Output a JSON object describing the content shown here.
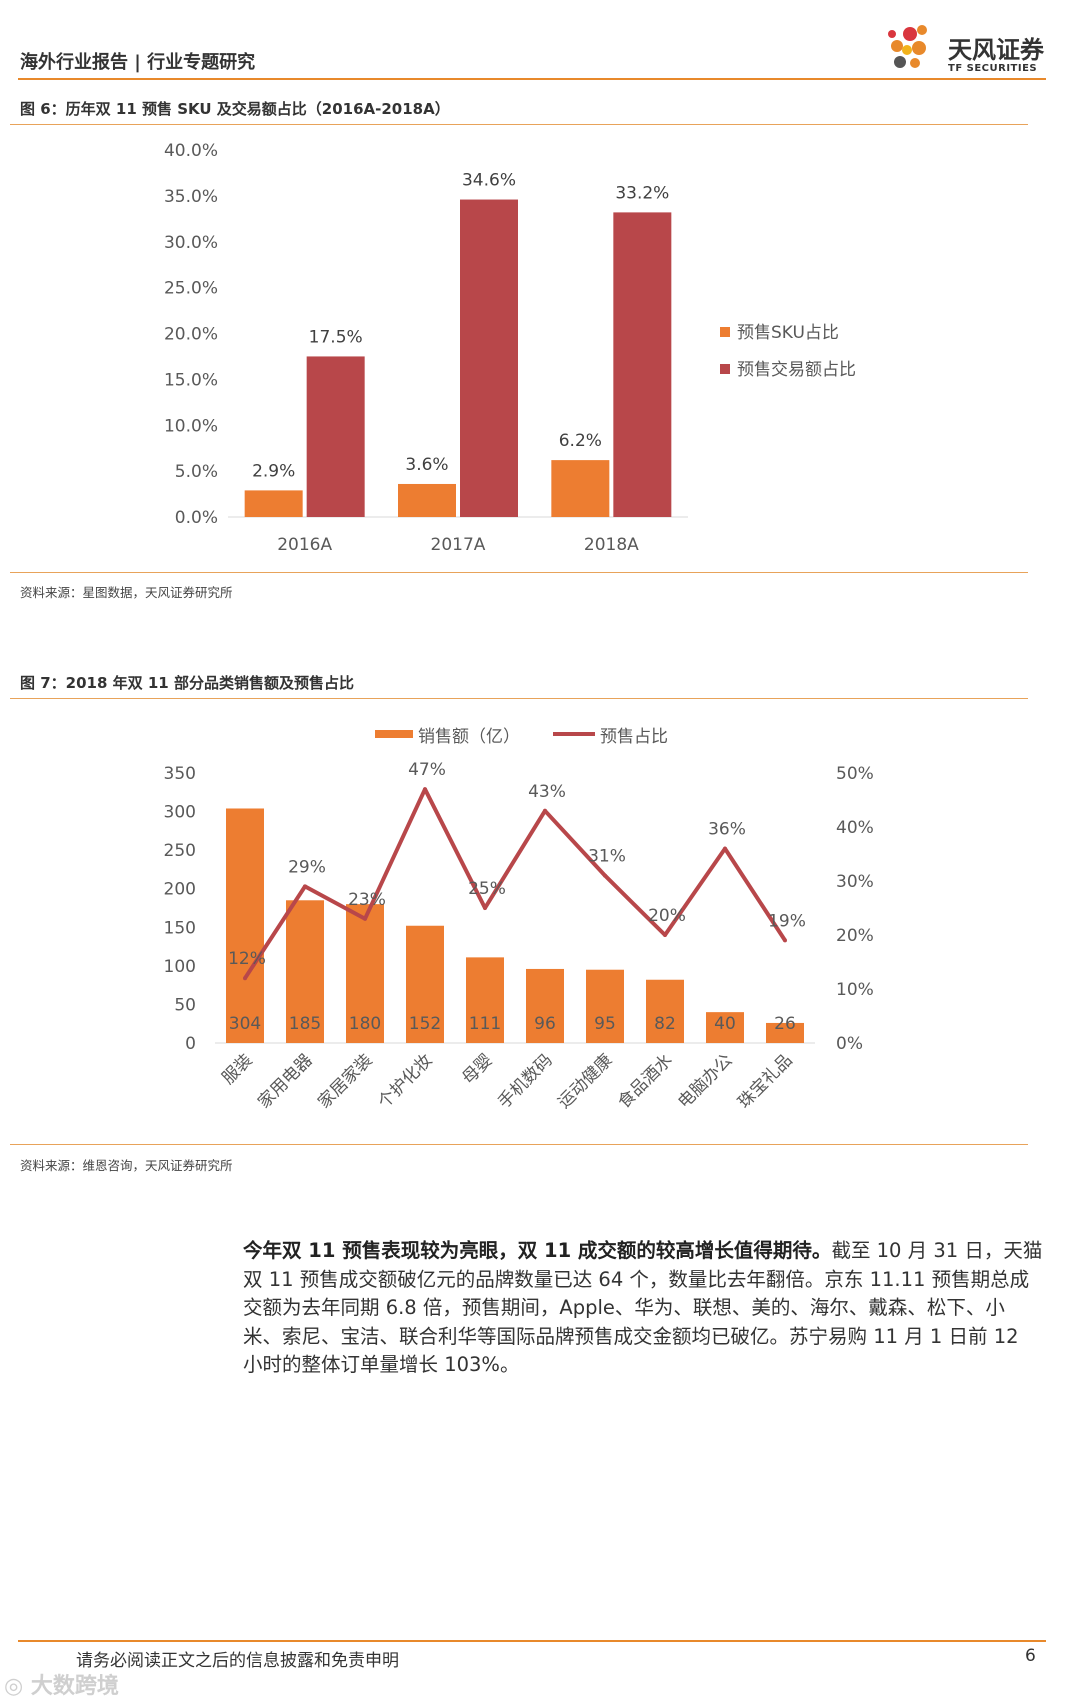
{
  "header": {
    "left": "海外行业报告 | 行业专题研究",
    "logo_cn": "天风证券",
    "logo_en": "TF SECURITIES"
  },
  "colors": {
    "accent": "#e8892b",
    "orange": "#ed7d31",
    "red": "#b8474a"
  },
  "figure6": {
    "title": "图 6：历年双 11 预售 SKU 及交易额占比（2016A-2018A）",
    "source": "资料来源：星图数据，天风证券研究所",
    "chart_data": {
      "type": "bar",
      "categories": [
        "2016A",
        "2017A",
        "2018A"
      ],
      "series": [
        {
          "name": "预售SKU占比",
          "values": [
            2.9,
            3.6,
            6.2
          ],
          "labels": [
            "2.9%",
            "3.6%",
            "6.2%"
          ],
          "color": "#ed7d31"
        },
        {
          "name": "预售交易额占比",
          "values": [
            17.5,
            34.6,
            33.2
          ],
          "labels": [
            "17.5%",
            "34.6%",
            "33.2%"
          ],
          "color": "#b8474a"
        }
      ],
      "ylim": [
        0,
        40
      ],
      "yticks": [
        "0.0%",
        "5.0%",
        "10.0%",
        "15.0%",
        "20.0%",
        "25.0%",
        "30.0%",
        "35.0%",
        "40.0%"
      ],
      "legend_position": "right",
      "grid": false
    }
  },
  "figure7": {
    "title": "图 7：2018 年双 11 部分品类销售额及预售占比",
    "source": "资料来源：维恩咨询，天风证券研究所",
    "chart_data": {
      "type": "bar+line",
      "categories": [
        "服装",
        "家用电器",
        "家居家装",
        "个护化妆",
        "母婴",
        "手机数码",
        "运动健康",
        "食品酒水",
        "电脑办公",
        "珠宝礼品"
      ],
      "bar_series": {
        "name": "销售额（亿）",
        "values": [
          304,
          185,
          180,
          152,
          111,
          96,
          95,
          82,
          40,
          26
        ],
        "labels": [
          "304",
          "185",
          "180",
          "152",
          "111",
          "96",
          "95",
          "82",
          "40",
          "26"
        ],
        "color": "#ed7d31"
      },
      "line_series": {
        "name": "预售占比",
        "values": [
          12,
          29,
          23,
          47,
          25,
          43,
          31,
          20,
          36,
          19
        ],
        "labels": [
          "12%",
          "29%",
          "23%",
          "47%",
          "25%",
          "43%",
          "31%",
          "20%",
          "36%",
          "19%"
        ],
        "color": "#b8474a"
      },
      "y_left": {
        "lim": [
          0,
          350
        ],
        "ticks": [
          "0",
          "50",
          "100",
          "150",
          "200",
          "250",
          "300",
          "350"
        ]
      },
      "y_right": {
        "lim": [
          0,
          50
        ],
        "ticks": [
          "0%",
          "10%",
          "20%",
          "30%",
          "40%",
          "50%"
        ]
      },
      "legend_position": "top",
      "grid": false
    }
  },
  "paragraph": {
    "bold": "今年双 11 预售表现较为亮眼，双 11 成交额的较高增长值得期待。",
    "text": "截至 10 月 31 日，天猫双 11 预售成交额破亿元的品牌数量已达 64 个，数量比去年翻倍。京东 11.11 预售期总成交额为去年同期 6.8 倍，预售期间，Apple、华为、联想、美的、海尔、戴森、松下、小米、索尼、宝洁、联合利华等国际品牌预售成交金额均已破亿。苏宁易购 11 月 1 日前 12 小时的整体订单量增长 103%。"
  },
  "footer": {
    "disclaimer": "请务必阅读正文之后的信息披露和免责申明",
    "page": "6",
    "watermark": "大数跨境"
  }
}
